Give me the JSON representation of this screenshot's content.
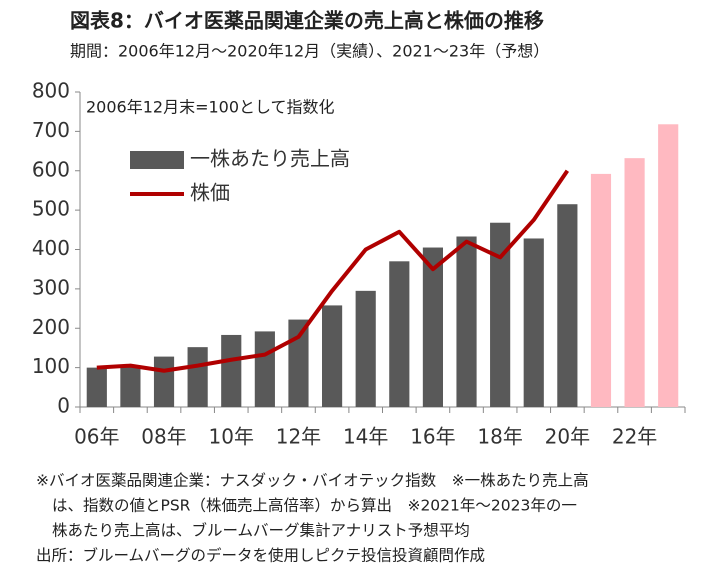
{
  "chart_data": {
    "type": "bar",
    "title": "図表8：バイオ医薬品関連企業の売上高と株価の推移",
    "subtitle": "期間：2006年12月～2020年12月（実績）、2021～23年（予想）",
    "annotation": "2006年12月末=100として指数化",
    "categories": [
      "06年",
      null,
      "08年",
      null,
      "10年",
      null,
      "12年",
      null,
      "14年",
      null,
      "16年",
      null,
      "18年",
      null,
      "20年",
      null,
      "22年",
      null
    ],
    "series": [
      {
        "name": "一株あたり売上高",
        "type": "bar",
        "color": "#595959",
        "colors": [
          "#595959",
          "#595959",
          "#595959",
          "#595959",
          "#595959",
          "#595959",
          "#595959",
          "#595959",
          "#595959",
          "#595959",
          "#595959",
          "#595959",
          "#595959",
          "#595959",
          "#595959",
          "#ffb9c1",
          "#ffb9c1",
          "#ffb9c1"
        ],
        "values": [
          100,
          105,
          128,
          152,
          183,
          192,
          222,
          258,
          295,
          370,
          405,
          433,
          468,
          428,
          515,
          592,
          632,
          718
        ]
      },
      {
        "name": "株価",
        "type": "line",
        "color": "#b00000",
        "values": [
          100,
          105,
          92,
          105,
          120,
          133,
          178,
          295,
          400,
          445,
          350,
          420,
          380,
          475,
          600,
          null,
          null,
          null
        ]
      }
    ],
    "ylim": [
      0,
      800
    ],
    "yticks": [
      0,
      100,
      200,
      300,
      400,
      500,
      600,
      700,
      800
    ],
    "notes": [
      "※バイオ医薬品関連企業：ナスダック・バイオテック指数　※一株あたり売上高",
      "は、指数の値とPSR（株価売上高倍率）から算出　※2021年～2023年の一",
      "株あたり売上高は、ブルームバーグ集計アナリスト予想平均",
      "出所：ブルームバーグのデータを使用しピクテ投信投資顧問作成"
    ]
  }
}
